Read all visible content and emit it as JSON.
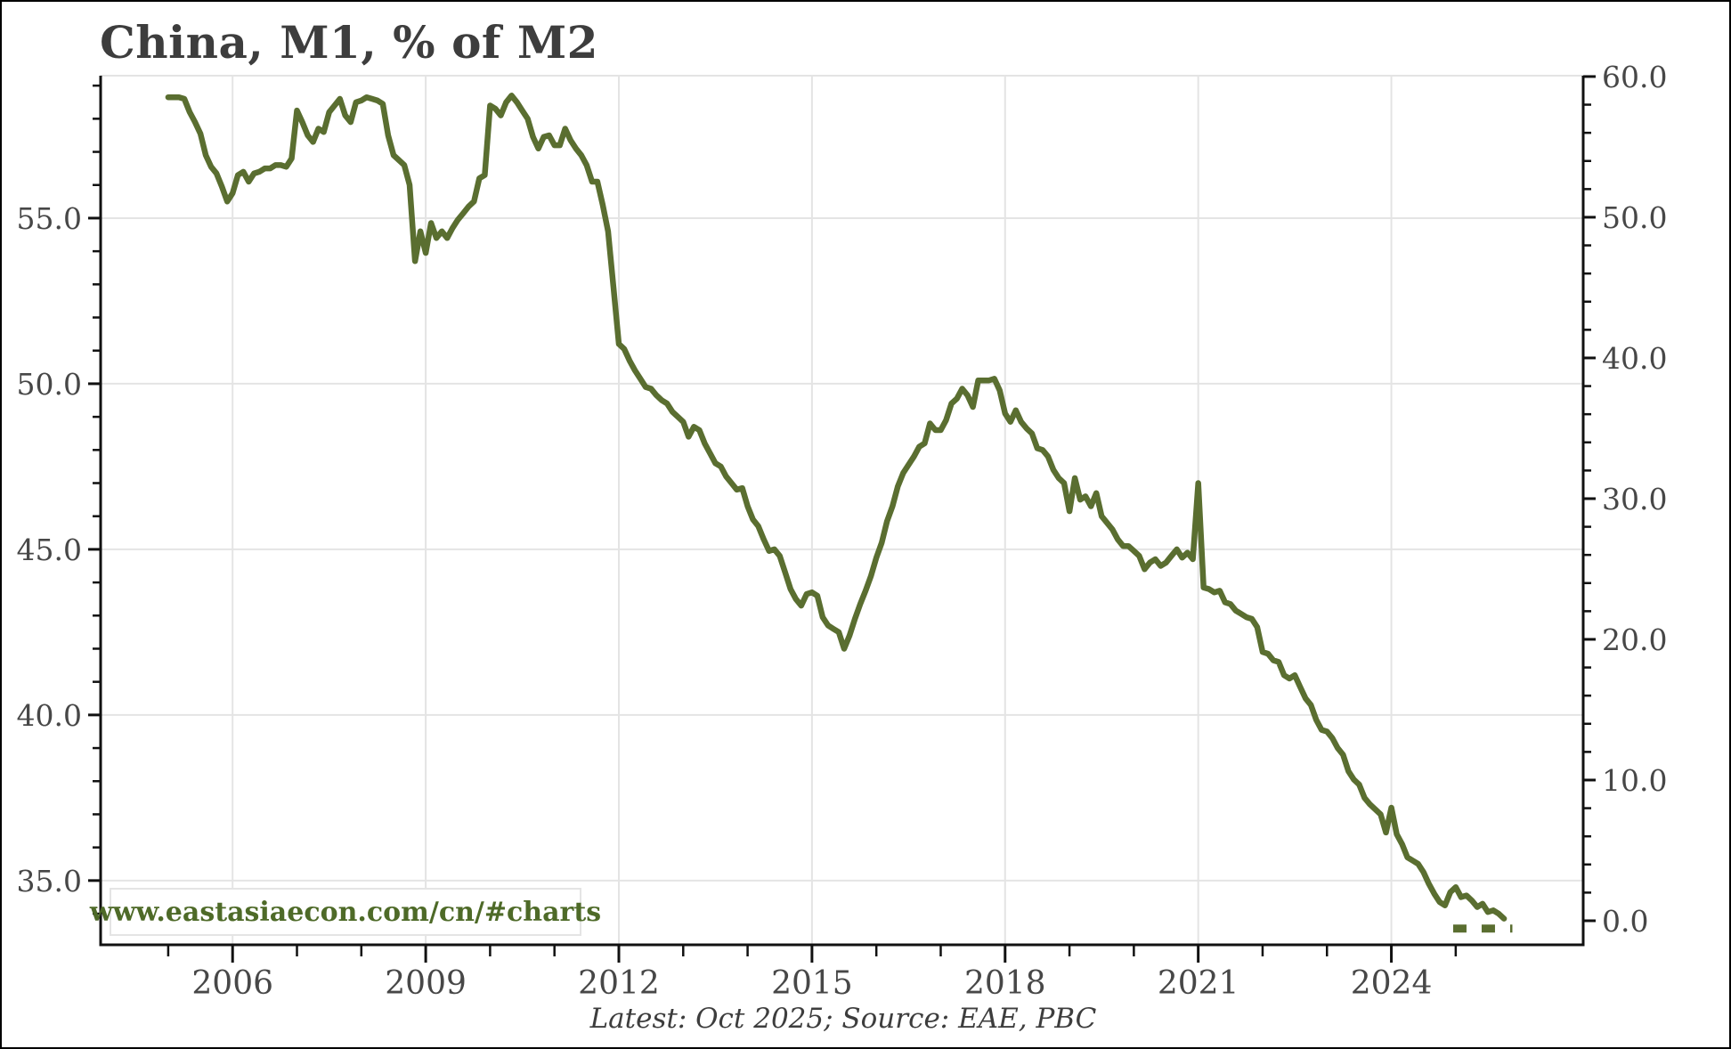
{
  "title": "China, M1, % of M2",
  "caption": "Latest: Oct 2025; Source: EAE, PBC",
  "watermark": "www.eastasiaecon.com/cn/#charts",
  "colors": {
    "line": "#5a6e30",
    "title": "#3d3d3d",
    "tick_label": "#474747",
    "grid": "#e4e4e4",
    "spine": "#111111",
    "watermark_text": "#4e6a28",
    "watermark_border": "#e4e4e4",
    "caption": "#3d3d3d",
    "background": "#ffffff"
  },
  "chart_data": {
    "type": "line",
    "title": "China, M1, % of M2",
    "grid": {
      "horizontal": true,
      "vertical": true
    },
    "legend": "none",
    "series": [
      {
        "name": "China M1 as % of M2",
        "axis": "left",
        "start_month": "2005-01",
        "frequency": "monthly",
        "latest": "2025-10",
        "values": [
          58.65,
          58.65,
          58.65,
          58.6,
          58.2,
          57.9,
          57.55,
          56.9,
          56.55,
          56.35,
          55.95,
          55.5,
          55.75,
          56.3,
          56.4,
          56.1,
          56.35,
          56.4,
          56.5,
          56.5,
          56.6,
          56.6,
          56.55,
          56.8,
          58.25,
          57.9,
          57.5,
          57.3,
          57.7,
          57.6,
          58.2,
          58.4,
          58.6,
          58.1,
          57.9,
          58.5,
          58.55,
          58.65,
          58.6,
          58.55,
          58.45,
          57.5,
          56.9,
          56.75,
          56.6,
          56.0,
          53.7,
          54.6,
          53.95,
          54.85,
          54.4,
          54.6,
          54.4,
          54.7,
          54.95,
          55.15,
          55.35,
          55.5,
          56.2,
          56.3,
          58.4,
          58.3,
          58.1,
          58.5,
          58.7,
          58.5,
          58.25,
          58.0,
          57.45,
          57.1,
          57.45,
          57.5,
          57.2,
          57.2,
          57.7,
          57.35,
          57.1,
          56.9,
          56.6,
          56.1,
          56.1,
          55.4,
          54.6,
          52.9,
          51.2,
          51.05,
          50.7,
          50.4,
          50.15,
          49.9,
          49.85,
          49.65,
          49.5,
          49.4,
          49.15,
          49.0,
          48.85,
          48.4,
          48.7,
          48.6,
          48.2,
          47.9,
          47.6,
          47.5,
          47.2,
          47.0,
          46.8,
          46.85,
          46.3,
          45.9,
          45.7,
          45.3,
          44.95,
          45.0,
          44.8,
          44.3,
          43.8,
          43.5,
          43.3,
          43.65,
          43.7,
          43.6,
          42.95,
          42.7,
          42.6,
          42.5,
          42.0,
          42.4,
          42.9,
          43.35,
          43.75,
          44.2,
          44.75,
          45.2,
          45.85,
          46.3,
          46.9,
          47.3,
          47.55,
          47.8,
          48.1,
          48.2,
          48.8,
          48.6,
          48.6,
          48.9,
          49.4,
          49.55,
          49.85,
          49.65,
          49.3,
          50.1,
          50.1,
          50.1,
          50.15,
          49.8,
          49.1,
          48.85,
          49.2,
          48.85,
          48.65,
          48.5,
          48.05,
          48.0,
          47.8,
          47.4,
          47.15,
          47.0,
          46.15,
          47.15,
          46.5,
          46.6,
          46.3,
          46.7,
          46.0,
          45.8,
          45.6,
          45.3,
          45.1,
          45.1,
          44.95,
          44.8,
          44.4,
          44.6,
          44.7,
          44.5,
          44.6,
          44.8,
          45.0,
          44.75,
          44.9,
          44.7,
          47.0,
          43.85,
          43.8,
          43.7,
          43.75,
          43.4,
          43.35,
          43.15,
          43.05,
          42.95,
          42.9,
          42.65,
          41.9,
          41.85,
          41.65,
          41.6,
          41.2,
          41.1,
          41.2,
          40.85,
          40.5,
          40.3,
          39.85,
          39.55,
          39.5,
          39.3,
          39.0,
          38.8,
          38.3,
          38.05,
          37.9,
          37.5,
          37.3,
          37.15,
          37.0,
          36.45,
          37.2,
          36.4,
          36.1,
          35.7,
          35.6,
          35.5,
          35.25,
          34.9,
          34.6,
          34.35,
          34.25,
          34.65,
          34.8,
          34.5,
          34.55,
          34.4,
          34.2,
          34.3,
          34.05,
          34.1,
          34.0,
          33.85
        ]
      }
    ],
    "left_axis": {
      "tick_labels": [
        "55.0",
        "50.0",
        "45.0",
        "40.0",
        "35.0"
      ],
      "tick_values": [
        55,
        50,
        45,
        40,
        35
      ],
      "minor_step": 1,
      "minor_range": [
        34,
        59
      ],
      "range": [
        33.06,
        59.3
      ]
    },
    "right_axis": {
      "tick_labels": [
        "60.0",
        "50.0",
        "40.0",
        "30.0",
        "20.0",
        "10.0",
        "0.0"
      ],
      "tick_values": [
        60,
        50,
        40,
        30,
        20,
        10,
        0
      ],
      "minor_step": 2,
      "minor_range": [
        0,
        58
      ],
      "range": [
        -1.71,
        60.06
      ]
    },
    "x_axis": {
      "tick_labels": [
        "2006",
        "2009",
        "2012",
        "2015",
        "2018",
        "2021",
        "2024"
      ],
      "tick_values": [
        2006,
        2009,
        2012,
        2015,
        2018,
        2021,
        2024
      ],
      "minor_step_years": 1,
      "minor_range": [
        2005,
        2025
      ],
      "range": [
        2003.95,
        2026.98
      ]
    },
    "annotations": [
      {
        "type": "dashed-segment",
        "axis": "left",
        "value": 33.55,
        "x_from": 2024.96,
        "x_to": 2025.88
      }
    ]
  }
}
